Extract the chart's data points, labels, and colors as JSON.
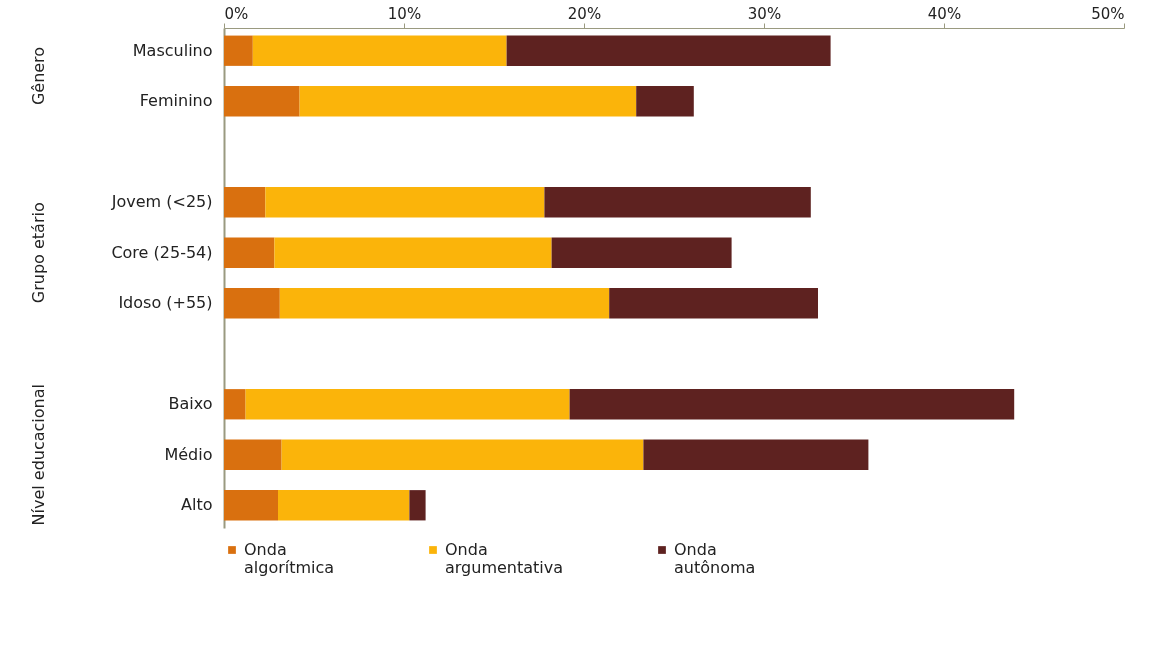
{
  "chart_data": {
    "type": "bar",
    "orientation": "horizontal",
    "stacked": true,
    "categories": [
      "Masculino",
      "Feminino",
      null,
      "Jovem (<25)",
      "Core (25-54)",
      "Idoso (+55)",
      null,
      "Baixo",
      "Médio",
      "Alto"
    ],
    "annotations": [
      "Gênero",
      "Grupo etário",
      "Nível educacional"
    ],
    "xlim": [
      0,
      50
    ],
    "xticks": [
      {
        "value": 0,
        "label": "0%"
      },
      {
        "value": 10,
        "label": "10%"
      },
      {
        "value": 20,
        "label": "20%"
      },
      {
        "value": 30,
        "label": "30%"
      },
      {
        "value": 40,
        "label": "40%"
      },
      {
        "value": 50,
        "label": "50%"
      }
    ],
    "grid": false,
    "legend": "bottom",
    "series": [
      {
        "name": "Onda algorítmica",
        "color": "#d9700f",
        "values": [
          1.6,
          4.2,
          null,
          2.3,
          2.8,
          3.1,
          null,
          1.2,
          3.2,
          3.0
        ]
      },
      {
        "name": "Onda argumentativa",
        "color": "#fbb40a",
        "values": [
          14.1,
          18.7,
          null,
          15.5,
          15.4,
          18.3,
          null,
          18.0,
          20.1,
          7.3
        ]
      },
      {
        "name": "Onda autônoma",
        "color": "#5e2220",
        "values": [
          18.0,
          3.2,
          null,
          14.8,
          10.0,
          11.6,
          null,
          24.7,
          12.5,
          0.9
        ]
      }
    ]
  }
}
